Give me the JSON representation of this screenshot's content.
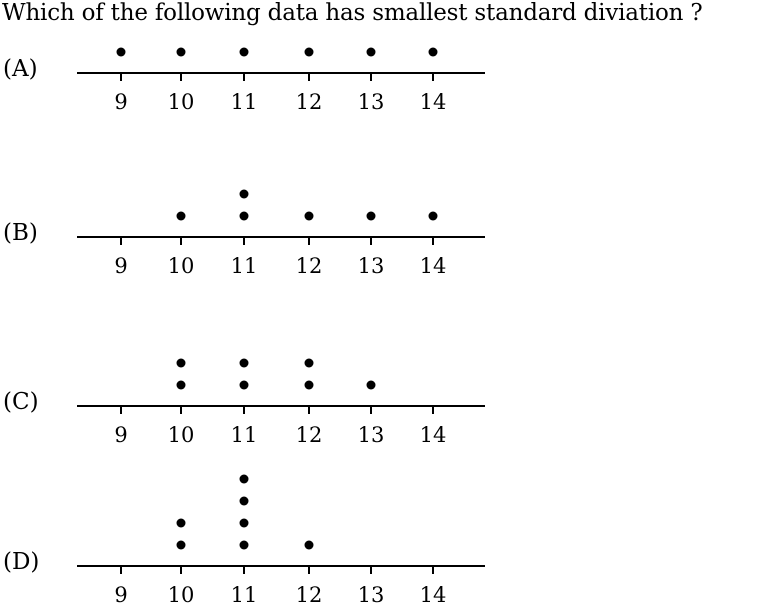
{
  "question": "Which of the following data has smallest standard diviation ?",
  "ticks": [
    9,
    10,
    11,
    12,
    13,
    14
  ],
  "plots": [
    {
      "label": "(A)",
      "counts": [
        1,
        1,
        1,
        1,
        1,
        1
      ]
    },
    {
      "label": "(B)",
      "counts": [
        0,
        1,
        2,
        1,
        1,
        1
      ]
    },
    {
      "label": "(C)",
      "counts": [
        0,
        2,
        2,
        2,
        1,
        0
      ]
    },
    {
      "label": "(D)",
      "counts": [
        0,
        2,
        4,
        1,
        0,
        0
      ]
    }
  ]
}
